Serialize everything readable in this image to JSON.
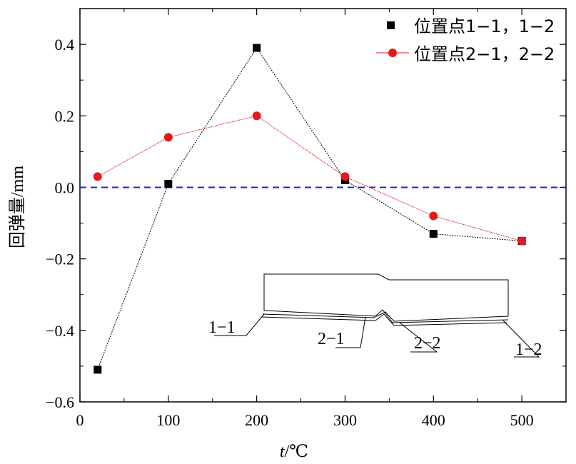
{
  "chart_data": {
    "type": "line",
    "xlabel_italic": "t",
    "xlabel_rest": "/℃",
    "ylabel": "回弹量/mm",
    "xlim": [
      0,
      550
    ],
    "ylim": [
      -0.6,
      0.5
    ],
    "xticks": [
      0,
      100,
      200,
      300,
      400,
      500
    ],
    "yticks": [
      -0.6,
      -0.4,
      -0.2,
      0.0,
      0.2,
      0.4
    ],
    "xtick_labels": [
      "0",
      "100",
      "200",
      "300",
      "400",
      "500"
    ],
    "ytick_labels": [
      "−0.6",
      "−0.4",
      "−0.2",
      "0.0",
      "0.2",
      "0.4"
    ],
    "reference_line": {
      "y": 0.0,
      "style": "dashed",
      "color": "#1f1fe0"
    },
    "legend_position": "top-right",
    "grid": false,
    "series": [
      {
        "name": "位置点1−1，1−2",
        "marker": "square",
        "color": "#000000",
        "x": [
          20,
          100,
          200,
          300,
          400,
          500
        ],
        "y": [
          -0.51,
          0.01,
          0.39,
          0.02,
          -0.13,
          -0.15
        ]
      },
      {
        "name": "位置点2−1，2−2",
        "marker": "circle",
        "color": "#e31a1c",
        "x": [
          20,
          100,
          200,
          300,
          400,
          500
        ],
        "y": [
          0.03,
          0.14,
          0.2,
          0.03,
          -0.08,
          -0.15
        ]
      }
    ],
    "inset": {
      "labels": [
        "1−1",
        "2−1",
        "2−2",
        "1−2"
      ]
    }
  }
}
